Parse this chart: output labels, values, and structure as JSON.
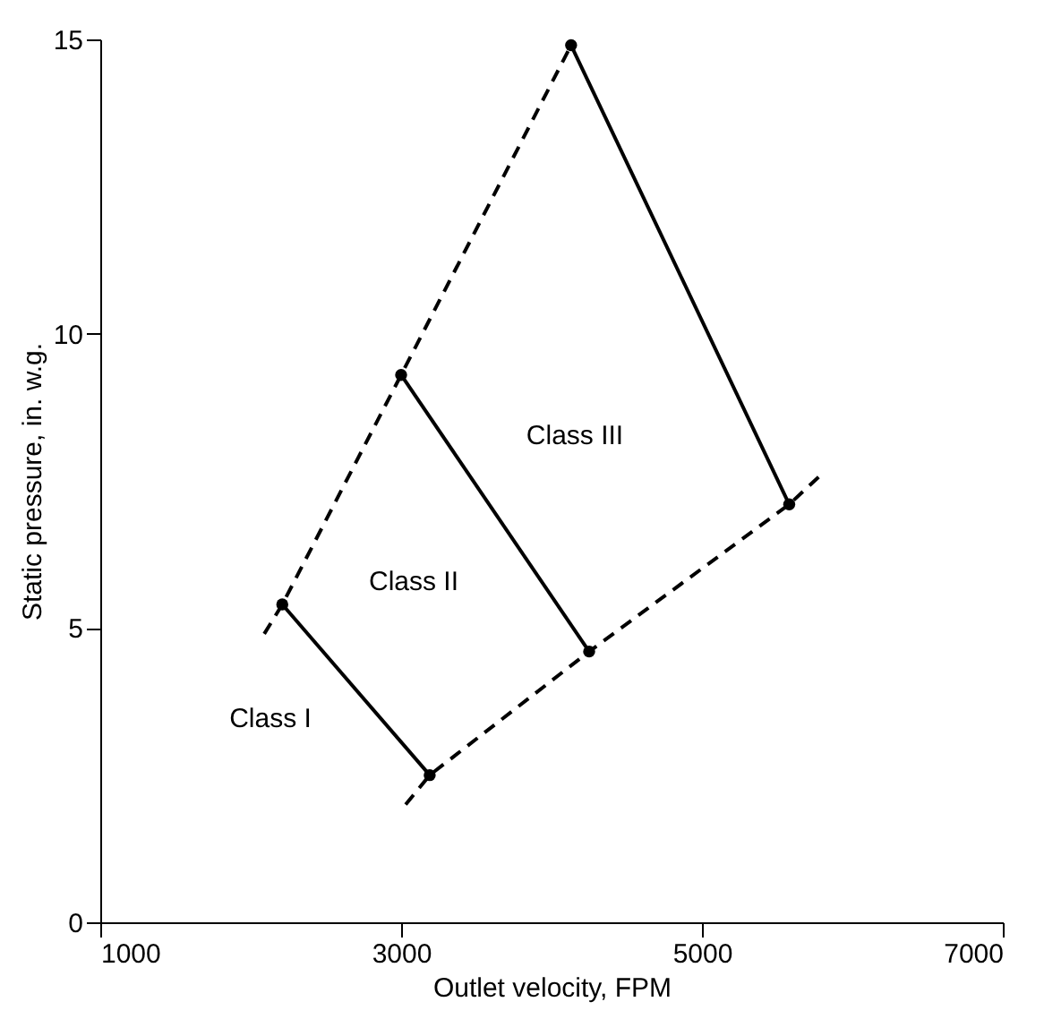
{
  "chart_data": {
    "type": "line",
    "xlabel": "Outlet velocity, FPM",
    "ylabel": "Static pressure, in. w.g.",
    "xlim": [
      1000,
      7000
    ],
    "ylim": [
      0,
      15
    ],
    "xticks": [
      1000,
      3000,
      5000,
      7000
    ],
    "yticks": [
      0,
      5,
      10,
      15
    ],
    "grid": false,
    "series": [
      {
        "color": "#000000",
        "line_style": "solid",
        "marker": "circle",
        "x": [
          2210,
          3190
        ],
        "values": [
          5.4,
          2.5
        ]
      },
      {
        "color": "#000000",
        "line_style": "solid",
        "marker": "circle",
        "x": [
          3000,
          4250
        ],
        "values": [
          9.3,
          4.6
        ]
      },
      {
        "color": "#000000",
        "line_style": "solid",
        "marker": "circle",
        "x": [
          4130,
          5580
        ],
        "values": [
          14.9,
          7.1
        ]
      },
      {
        "color": "#000000",
        "line_style": "dashed",
        "marker": "none",
        "x": [
          2090,
          2210,
          3000,
          4130
        ],
        "values": [
          4.9,
          5.4,
          9.3,
          14.9
        ]
      },
      {
        "color": "#000000",
        "line_style": "dashed",
        "marker": "none",
        "x": [
          3030,
          3190,
          4250,
          5580,
          5790
        ],
        "values": [
          2.0,
          2.5,
          4.6,
          7.1,
          7.6
        ]
      }
    ],
    "annotations": [
      "Class I",
      "Class II",
      "Class III"
    ]
  }
}
